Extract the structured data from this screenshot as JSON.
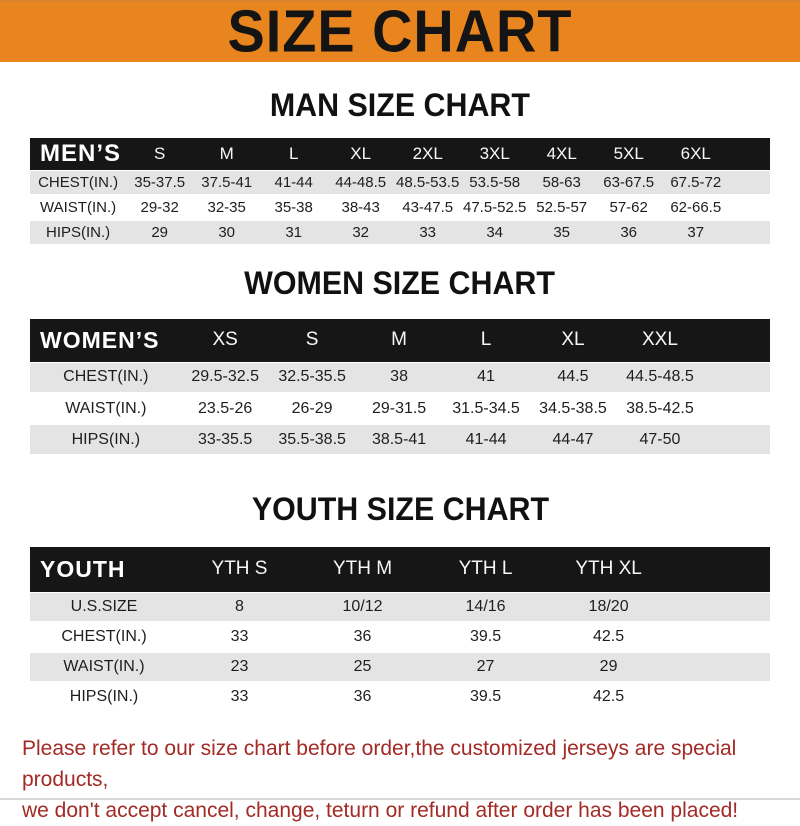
{
  "banner": {
    "title": "SIZE CHART",
    "bg_color": "#E8851F",
    "text_color": "#141414"
  },
  "sections": [
    {
      "heading": "MAN SIZE CHART",
      "header_label": "MEN’S",
      "columns": [
        "S",
        "M",
        "L",
        "XL",
        "2XL",
        "3XL",
        "4XL",
        "5XL",
        "6XL"
      ],
      "rows": [
        {
          "label": "CHEST(IN.)",
          "values": [
            "35-37.5",
            "37.5-41",
            "41-44",
            "44-48.5",
            "48.5-53.5",
            "53.5-58",
            "58-63",
            "63-67.5",
            "67.5-72"
          ]
        },
        {
          "label": "WAIST(IN.)",
          "values": [
            "29-32",
            "32-35",
            "35-38",
            "38-43",
            "43-47.5",
            "47.5-52.5",
            "52.5-57",
            "57-62",
            "62-66.5"
          ]
        },
        {
          "label": "HIPS(IN.)",
          "values": [
            "29",
            "30",
            "31",
            "32",
            "33",
            "34",
            "35",
            "36",
            "37"
          ]
        }
      ]
    },
    {
      "heading": "WOMEN SIZE CHART",
      "header_label": "WOMEN’S",
      "columns": [
        "XS",
        "S",
        "M",
        "L",
        "XL",
        "XXL"
      ],
      "rows": [
        {
          "label": "CHEST(IN.)",
          "values": [
            "29.5-32.5",
            "32.5-35.5",
            "38",
            "41",
            "44.5",
            "44.5-48.5"
          ]
        },
        {
          "label": "WAIST(IN.)",
          "values": [
            "23.5-26",
            "26-29",
            "29-31.5",
            "31.5-34.5",
            "34.5-38.5",
            "38.5-42.5"
          ]
        },
        {
          "label": "HIPS(IN.)",
          "values": [
            "33-35.5",
            "35.5-38.5",
            "38.5-41",
            "41-44",
            "44-47",
            "47-50"
          ]
        }
      ]
    },
    {
      "heading": "YOUTH SIZE CHART",
      "header_label": "YOUTH",
      "columns": [
        "YTH S",
        "YTH M",
        "YTH L",
        "YTH XL"
      ],
      "rows": [
        {
          "label": "U.S.SIZE",
          "values": [
            "8",
            "10/12",
            "14/16",
            "18/20"
          ]
        },
        {
          "label": "CHEST(IN.)",
          "values": [
            "33",
            "36",
            "39.5",
            "42.5"
          ]
        },
        {
          "label": "WAIST(IN.)",
          "values": [
            "23",
            "25",
            "27",
            "29"
          ]
        },
        {
          "label": "HIPS(IN.)",
          "values": [
            "33",
            "36",
            "39.5",
            "42.5"
          ]
        }
      ]
    }
  ],
  "footer": {
    "line1": "Please refer to our size chart before order,the customized jerseys are special products,",
    "line2": "we don't accept cancel, change, teturn or refund after order has been placed!",
    "text_color": "#A32A25"
  },
  "colors": {
    "banner_orange": "#E8851F",
    "table_header_black": "#161616",
    "row_gray": "#e4e4e4",
    "note_red": "#A32A25"
  }
}
